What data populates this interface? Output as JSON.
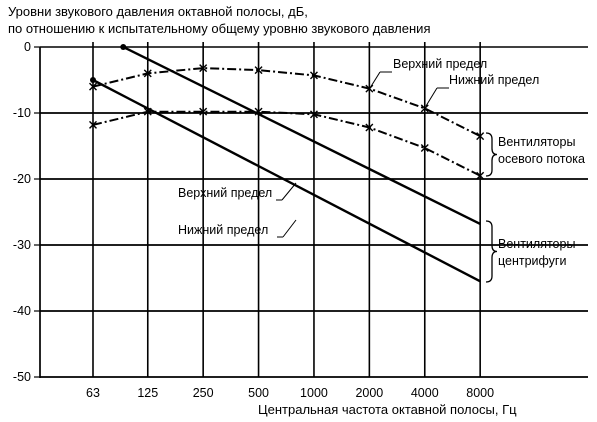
{
  "chart_data": {
    "type": "line",
    "title": "Уровни звукового давления октавной полосы, дБ,",
    "subtitle": "по отношению к испытательному общему уровню звукового давления",
    "xlabel": "Центральная частота октавной полосы, Гц",
    "ylabel": "",
    "x_scale": "log2",
    "categories": [
      "63",
      "125",
      "250",
      "500",
      "1000",
      "2000",
      "4000",
      "8000"
    ],
    "yticks": [
      "0",
      "-10",
      "-20",
      "-30",
      "-40",
      "-50"
    ],
    "ylim": [
      -50,
      0
    ],
    "grid": "horizontal",
    "series": [
      {
        "group": "Вентиляторы осевого потока",
        "name": "Верхний предел",
        "style": "dash-dot with x markers",
        "x": [
          63,
          125,
          250,
          500,
          1000,
          2000,
          4000,
          8000
        ],
        "y": [
          -6,
          -4,
          -3.2,
          -3.5,
          -4.3,
          -6.3,
          -9.3,
          -13.5
        ]
      },
      {
        "group": "Вентиляторы осевого потока",
        "name": "Нижний предел",
        "style": "dash-dot with x markers",
        "x": [
          63,
          125,
          250,
          500,
          1000,
          2000,
          4000,
          8000
        ],
        "y": [
          -11.8,
          -9.8,
          -9.8,
          -9.8,
          -10.2,
          -12.2,
          -15.3,
          -19.5
        ]
      },
      {
        "group": "Вентиляторы центрифуги",
        "name": "Верхний предел",
        "style": "solid",
        "x": [
          92,
          8000
        ],
        "y": [
          0,
          -26.8
        ]
      },
      {
        "group": "Вентиляторы центрифуги",
        "name": "Нижний предел",
        "style": "solid",
        "x": [
          63,
          8000
        ],
        "y": [
          -5,
          -35.5
        ]
      }
    ],
    "annotations": {
      "axial_upper": "Верхний предел",
      "axial_lower": "Нижний предел",
      "axial_group_1": "Вентиляторы",
      "axial_group_2": "осевого потока",
      "centrifugal_upper": "Верхний предел",
      "centrifugal_lower": "Нижний предел",
      "centrifugal_group_1": "Вентиляторы",
      "centrifugal_group_2": "центрифуги"
    }
  }
}
